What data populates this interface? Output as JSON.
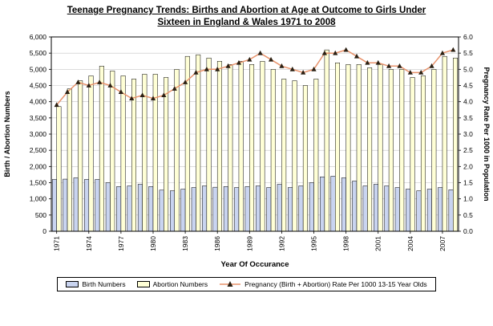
{
  "title": {
    "line1": "Teenage Pregnancy Trends: Births and Abortion at Age at Outcome to Girls Under",
    "line2": "Sixteen in England & Wales 1971 to 2008"
  },
  "axes": {
    "left_title": "Birth / Abortion Numbers",
    "right_title": "Pregnancy Rate Per 1000 in Population",
    "x_title": "Year Of Occurance",
    "left_min": 0,
    "left_max": 6000,
    "left_step": 500,
    "right_min": 0,
    "right_max": 6,
    "right_step": 0.5
  },
  "legend": {
    "birth_label": "Birth Numbers",
    "abortion_label": "Abortion Numbers",
    "rate_label": "Pregnancy (Birth + Abortion)  Rate Per 1000 13-15 Year Olds"
  },
  "colors": {
    "birth": "#c9d4f0",
    "abortion": "#ffffd6",
    "line": "#e8936c",
    "marker": "#2b2013",
    "grid": "#c6c6c6"
  },
  "chart_data": {
    "type": "bar",
    "title": "Teenage Pregnancy Trends: Births and Abortion at Age at Outcome to Girls Under Sixteen in England & Wales 1971 to 2008",
    "xlabel": "Year Of Occurance",
    "ylabel_left": "Birth / Abortion Numbers",
    "ylabel_right": "Pregnancy Rate Per 1000 in Population",
    "ylim_left": [
      0,
      6000
    ],
    "ylim_right": [
      0,
      6
    ],
    "grid": true,
    "legend_position": "bottom",
    "x": [
      1971,
      1972,
      1973,
      1974,
      1975,
      1976,
      1977,
      1978,
      1979,
      1980,
      1981,
      1982,
      1983,
      1984,
      1985,
      1986,
      1987,
      1988,
      1989,
      1990,
      1991,
      1992,
      1993,
      1994,
      1995,
      1996,
      1997,
      1998,
      1999,
      2000,
      2001,
      2002,
      2003,
      2004,
      2005,
      2006,
      2007,
      2008
    ],
    "x_tick_labels": [
      "1971",
      "1974",
      "1977",
      "1980",
      "1983",
      "1986",
      "1989",
      "1992",
      "1995",
      "1998",
      "2001",
      "2004",
      "2007"
    ],
    "series": [
      {
        "name": "Birth Numbers",
        "type": "bar",
        "axis": "left",
        "values": [
          1600,
          1610,
          1650,
          1600,
          1600,
          1500,
          1380,
          1400,
          1450,
          1380,
          1270,
          1250,
          1300,
          1350,
          1400,
          1360,
          1380,
          1350,
          1380,
          1400,
          1350,
          1450,
          1350,
          1400,
          1500,
          1680,
          1700,
          1650,
          1550,
          1400,
          1450,
          1400,
          1350,
          1300,
          1250,
          1300,
          1350,
          1280
        ]
      },
      {
        "name": "Abortion Numbers",
        "type": "bar",
        "axis": "left",
        "values": [
          3850,
          4400,
          4650,
          4800,
          5100,
          4950,
          4800,
          4700,
          4850,
          4850,
          4750,
          5000,
          5400,
          5450,
          5350,
          5250,
          5150,
          5250,
          5150,
          5250,
          5000,
          4700,
          4650,
          4500,
          4700,
          5600,
          5200,
          5150,
          5150,
          5050,
          5150,
          5000,
          5000,
          4750,
          4800,
          5000,
          5400,
          5350
        ]
      },
      {
        "name": "Pregnancy (Birth + Abortion) Rate Per 1000 13-15 Year Olds",
        "type": "line",
        "axis": "right",
        "values": [
          3.9,
          4.3,
          4.6,
          4.5,
          4.6,
          4.5,
          4.3,
          4.1,
          4.2,
          4.1,
          4.2,
          4.4,
          4.6,
          4.9,
          5.0,
          5.0,
          5.1,
          5.2,
          5.3,
          5.5,
          5.3,
          5.1,
          5.0,
          4.9,
          5.0,
          5.5,
          5.5,
          5.6,
          5.4,
          5.2,
          5.2,
          5.1,
          5.1,
          4.9,
          4.9,
          5.1,
          5.5,
          5.6
        ]
      }
    ]
  }
}
